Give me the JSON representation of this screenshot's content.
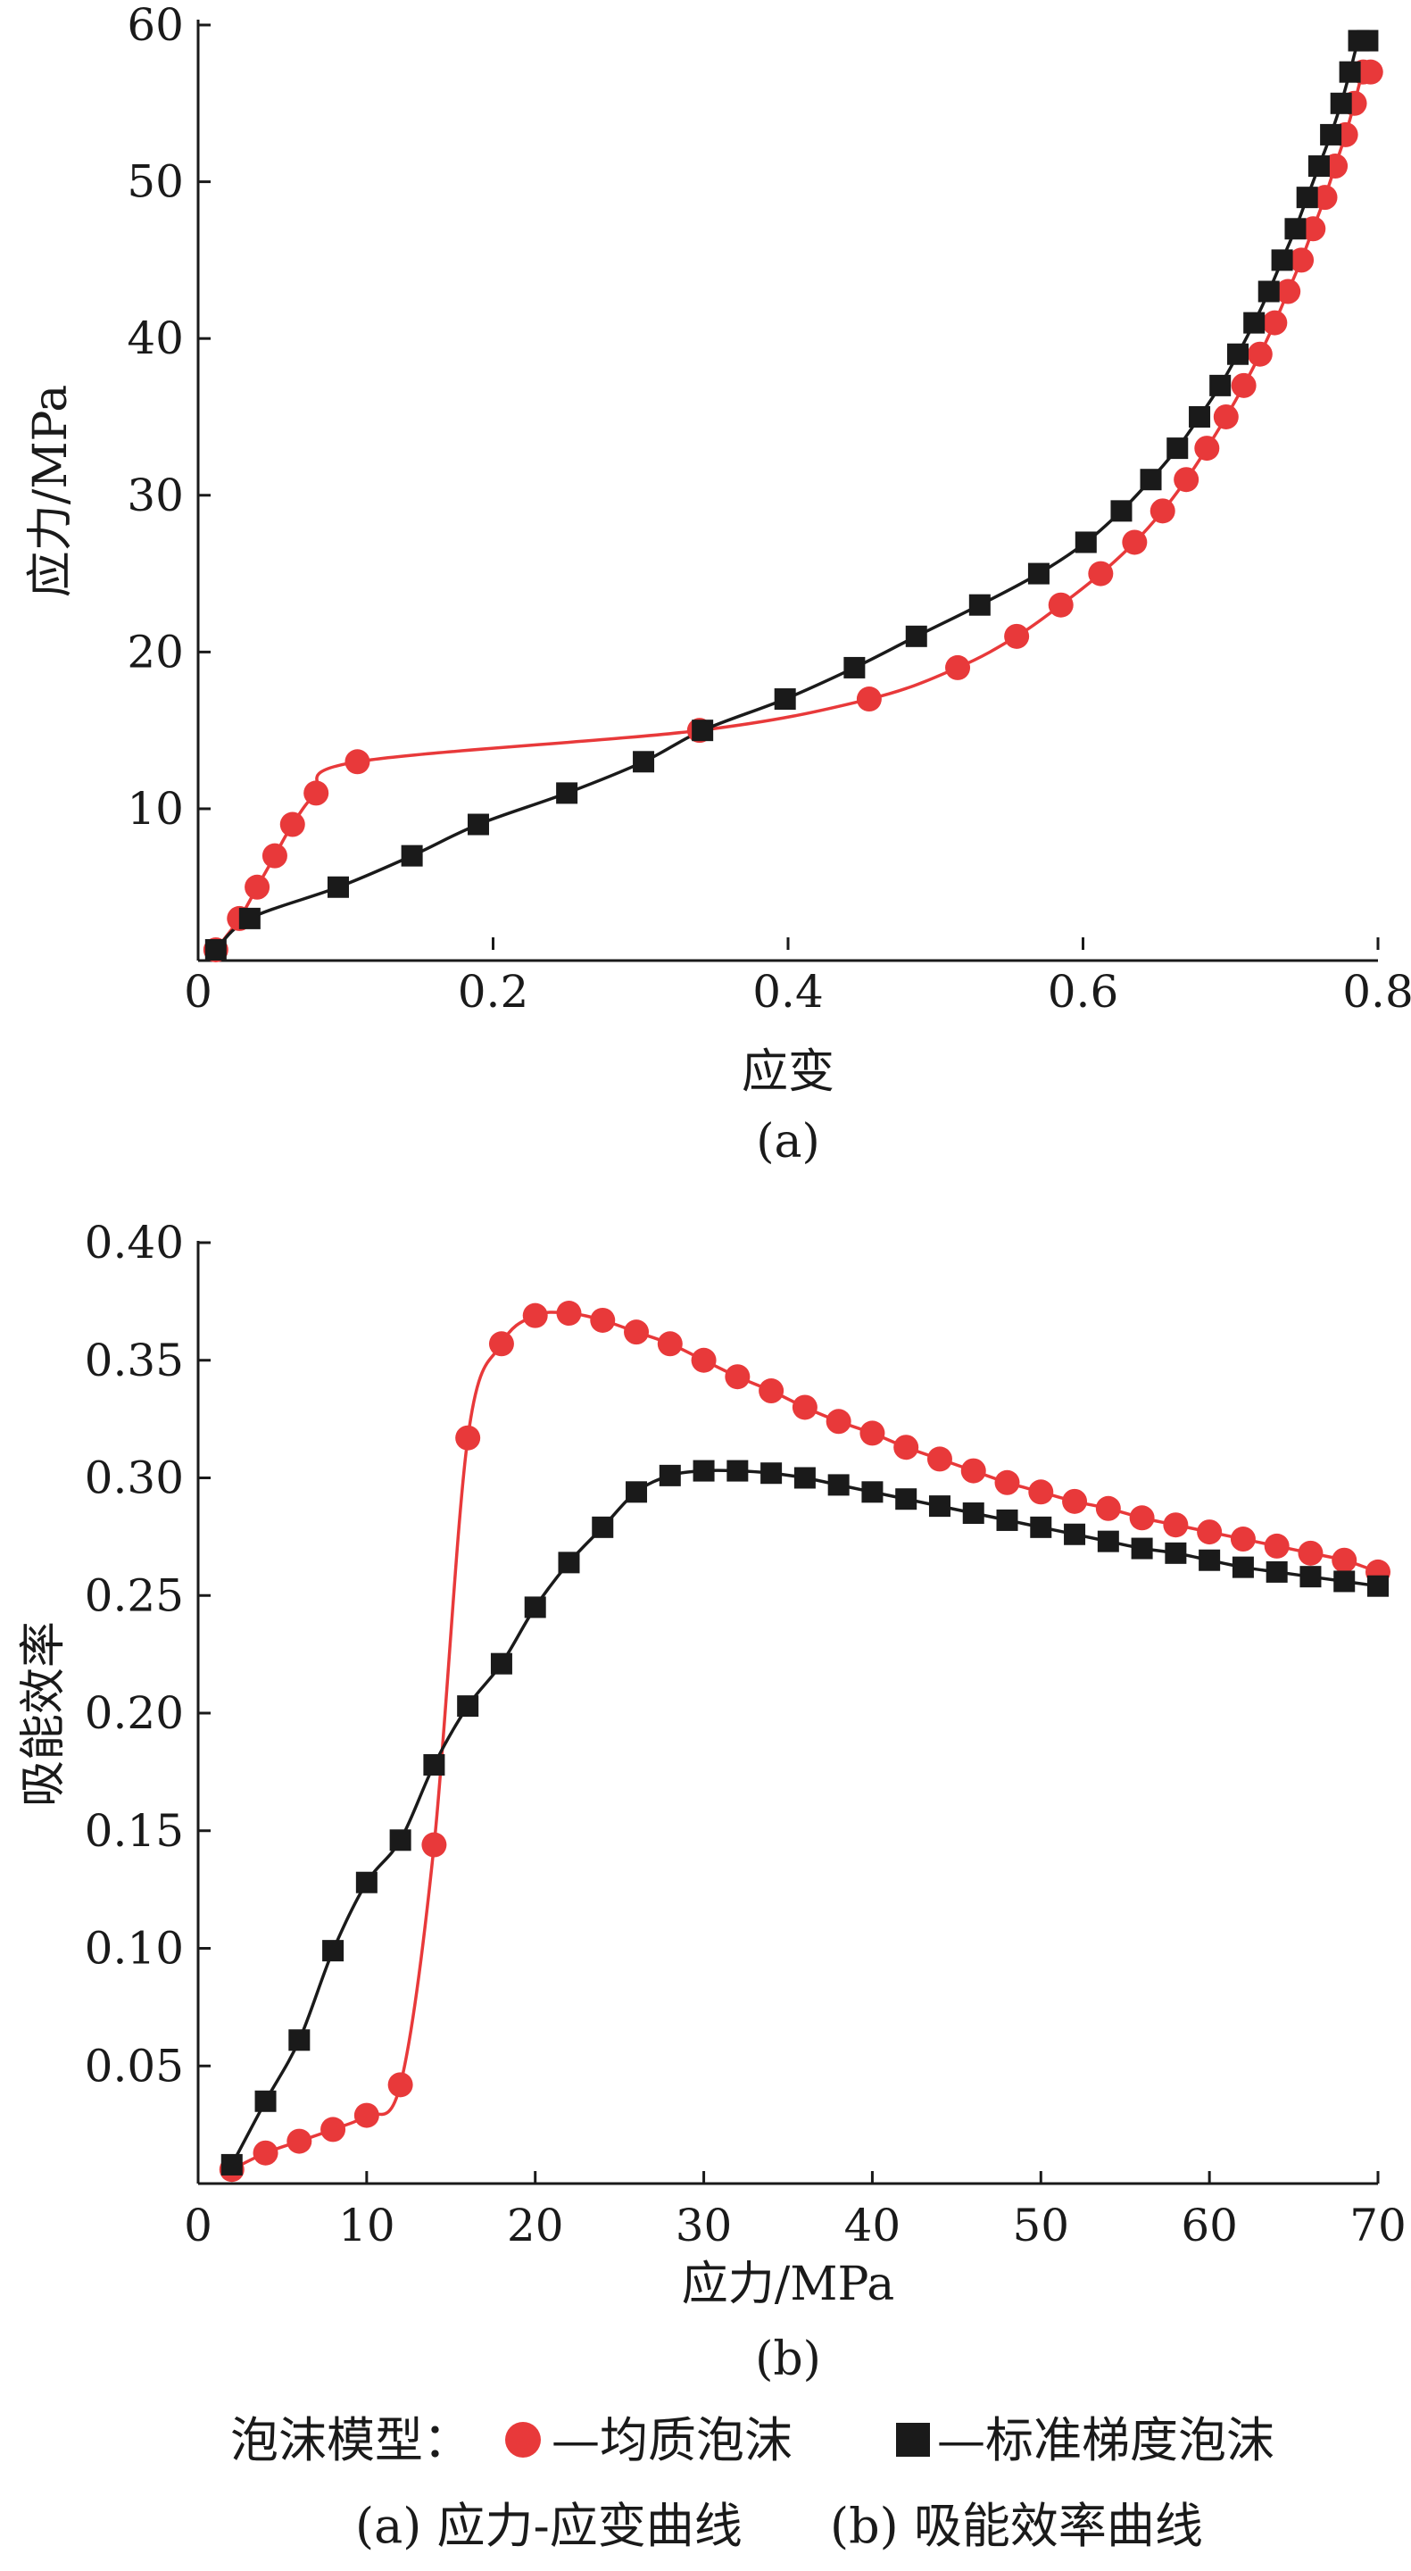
{
  "chart_data": [
    {
      "type": "line",
      "panel_label": "(a)",
      "xlabel": "应变",
      "ylabel": "应力/MPa",
      "xlim": [
        0,
        0.8
      ],
      "ylim": [
        1,
        60
      ],
      "xticks": [
        0,
        0.2,
        0.4,
        0.6,
        0.8
      ],
      "xtick_labels": [
        "0",
        "0.2",
        "0.4",
        "0.6",
        "0.8"
      ],
      "yticks": [
        10,
        20,
        30,
        40,
        50,
        60
      ],
      "ytick_labels": [
        "10",
        "20",
        "30",
        "40",
        "50",
        "60"
      ],
      "grid": false,
      "series": [
        {
          "key": "homogeneous",
          "marker": "circle",
          "color": "#e8393a",
          "x": [
            0.012,
            0.028,
            0.04,
            0.052,
            0.064,
            0.08,
            0.108,
            0.34,
            0.455,
            0.515,
            0.555,
            0.585,
            0.612,
            0.635,
            0.654,
            0.67,
            0.684,
            0.697,
            0.709,
            0.72,
            0.73,
            0.739,
            0.748,
            0.756,
            0.764,
            0.771,
            0.778,
            0.784,
            0.79,
            0.795
          ],
          "y": [
            1,
            3,
            5,
            7,
            9,
            11,
            13,
            15,
            17,
            19,
            21,
            23,
            25,
            27,
            29,
            31,
            33,
            35,
            37,
            39,
            41,
            43,
            45,
            47,
            49,
            51,
            53,
            55,
            57,
            57
          ]
        },
        {
          "key": "graded",
          "marker": "square",
          "color": "#1a1a1a",
          "x": [
            0.012,
            0.035,
            0.095,
            0.145,
            0.19,
            0.25,
            0.302,
            0.342,
            0.398,
            0.445,
            0.487,
            0.53,
            0.57,
            0.602,
            0.626,
            0.646,
            0.664,
            0.679,
            0.693,
            0.705,
            0.716,
            0.726,
            0.735,
            0.744,
            0.752,
            0.76,
            0.768,
            0.775,
            0.781,
            0.787,
            0.793
          ],
          "y": [
            1,
            3,
            5,
            7,
            9,
            11,
            13,
            15,
            17,
            19,
            21,
            23,
            25,
            27,
            29,
            31,
            33,
            35,
            37,
            39,
            41,
            43,
            45,
            47,
            49,
            51,
            53,
            55,
            57,
            59,
            59
          ]
        }
      ]
    },
    {
      "type": "line",
      "panel_label": "(b)",
      "xlabel": "应力/MPa",
      "ylabel": "吸能效率",
      "xlim": [
        0,
        70
      ],
      "ylim": [
        0,
        0.4
      ],
      "xticks": [
        0,
        10,
        20,
        30,
        40,
        50,
        60,
        70
      ],
      "xtick_labels": [
        "0",
        "10",
        "20",
        "30",
        "40",
        "50",
        "60",
        "70"
      ],
      "yticks": [
        0.05,
        0.1,
        0.15,
        0.2,
        0.25,
        0.3,
        0.35,
        0.4
      ],
      "ytick_labels": [
        "0.05",
        "0.10",
        "0.15",
        "0.20",
        "0.25",
        "0.30",
        "0.35",
        "0.40"
      ],
      "grid": false,
      "series": [
        {
          "key": "homogeneous",
          "marker": "circle",
          "color": "#e8393a",
          "x": [
            2,
            4,
            6,
            8,
            10,
            12,
            14,
            16,
            18,
            20,
            22,
            24,
            26,
            28,
            30,
            32,
            34,
            36,
            38,
            40,
            42,
            44,
            46,
            48,
            50,
            52,
            54,
            56,
            58,
            60,
            62,
            64,
            66,
            68,
            70
          ],
          "y": [
            0.006,
            0.013,
            0.018,
            0.023,
            0.029,
            0.042,
            0.144,
            0.317,
            0.357,
            0.369,
            0.37,
            0.367,
            0.362,
            0.357,
            0.35,
            0.343,
            0.337,
            0.33,
            0.324,
            0.319,
            0.313,
            0.308,
            0.303,
            0.298,
            0.294,
            0.29,
            0.287,
            0.283,
            0.28,
            0.277,
            0.274,
            0.271,
            0.268,
            0.265,
            0.26
          ]
        },
        {
          "key": "graded",
          "marker": "square",
          "color": "#1a1a1a",
          "x": [
            2,
            4,
            6,
            8,
            10,
            12,
            14,
            16,
            18,
            20,
            22,
            24,
            26,
            28,
            30,
            32,
            34,
            36,
            38,
            40,
            42,
            44,
            46,
            48,
            50,
            52,
            54,
            56,
            58,
            60,
            62,
            64,
            66,
            68,
            70
          ],
          "y": [
            0.008,
            0.035,
            0.061,
            0.099,
            0.128,
            0.146,
            0.178,
            0.203,
            0.221,
            0.245,
            0.264,
            0.279,
            0.294,
            0.301,
            0.303,
            0.303,
            0.302,
            0.3,
            0.297,
            0.294,
            0.291,
            0.288,
            0.285,
            0.282,
            0.279,
            0.276,
            0.273,
            0.27,
            0.268,
            0.265,
            0.262,
            0.26,
            0.258,
            0.256,
            0.254
          ]
        }
      ]
    }
  ],
  "legend": {
    "prefix": "泡沫模型：",
    "items": [
      {
        "key": "homogeneous",
        "marker": "circle",
        "color": "#e8393a",
        "label": "—均质泡沫"
      },
      {
        "key": "graded",
        "marker": "square",
        "color": "#1a1a1a",
        "label": "—标准梯度泡沫"
      }
    ]
  },
  "caption": {
    "a": "(a) 应力-应变曲线",
    "b": "(b) 吸能效率曲线"
  }
}
